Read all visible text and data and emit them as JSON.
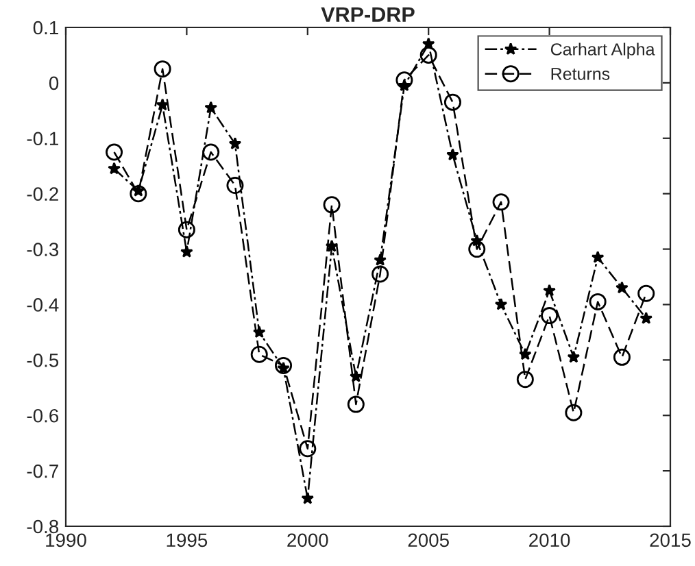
{
  "chart_data": {
    "type": "line",
    "title": "VRP-DRP",
    "x": [
      1992,
      1993,
      1994,
      1995,
      1996,
      1997,
      1998,
      1999,
      2000,
      2001,
      2002,
      2003,
      2004,
      2005,
      2006,
      2007,
      2008,
      2009,
      2010,
      2011,
      2012,
      2013,
      2014
    ],
    "series": [
      {
        "name": "Carhart Alpha",
        "color": "#000000",
        "marker": "star",
        "line_style": "dashdot",
        "values": [
          -0.155,
          -0.195,
          -0.04,
          -0.305,
          -0.045,
          -0.11,
          -0.45,
          -0.515,
          -0.75,
          -0.295,
          -0.53,
          -0.32,
          -0.005,
          0.07,
          -0.13,
          -0.285,
          -0.4,
          -0.49,
          -0.375,
          -0.495,
          -0.315,
          -0.37,
          -0.425
        ]
      },
      {
        "name": "Returns",
        "color": "#000000",
        "marker": "circle",
        "line_style": "dashed",
        "values": [
          -0.125,
          -0.2,
          0.025,
          -0.265,
          -0.125,
          -0.185,
          -0.49,
          -0.51,
          -0.66,
          -0.22,
          -0.58,
          -0.345,
          0.005,
          0.05,
          -0.035,
          -0.3,
          -0.215,
          -0.535,
          -0.42,
          -0.595,
          -0.395,
          -0.495,
          -0.38
        ]
      }
    ],
    "xlim": [
      1990,
      2015
    ],
    "xticks": [
      1990,
      1995,
      2000,
      2005,
      2010,
      2015
    ],
    "ylim": [
      -0.8,
      0.1
    ],
    "yticks": [
      -0.8,
      -0.7,
      -0.6,
      -0.5,
      -0.4,
      -0.3,
      -0.2,
      -0.1,
      0,
      0.1
    ],
    "grid": false,
    "legend": "top right"
  }
}
